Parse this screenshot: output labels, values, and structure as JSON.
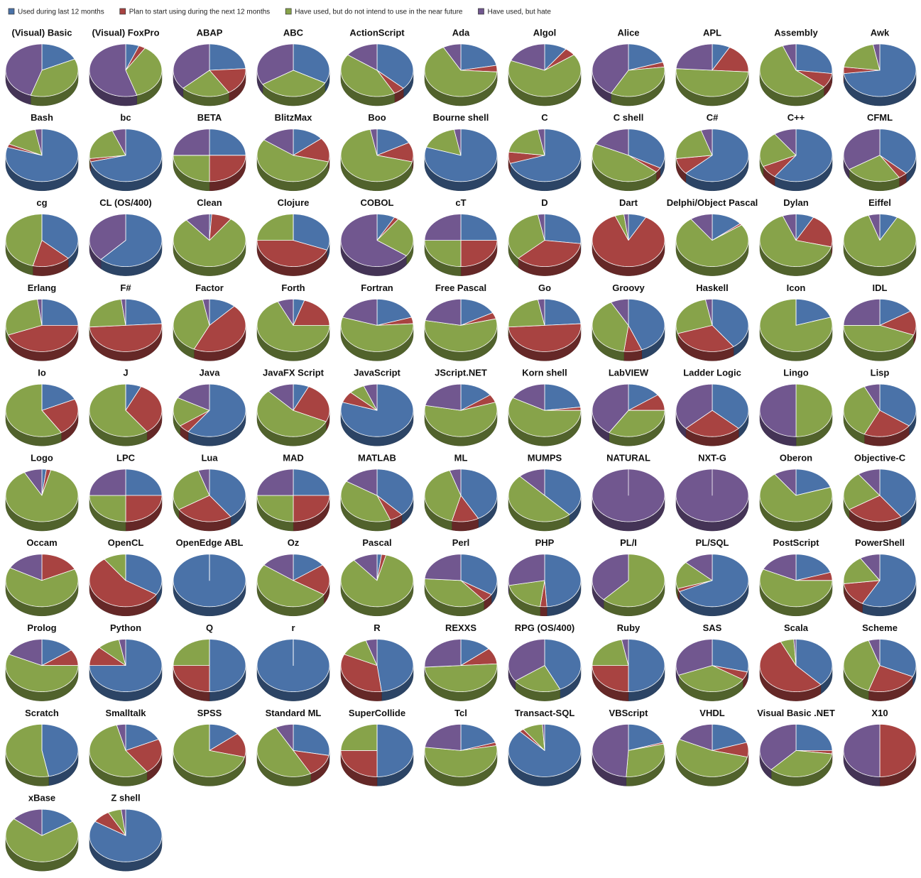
{
  "legend": [
    {
      "name": "Used during last 12 months",
      "color": "#4a72a8"
    },
    {
      "name": "Plan to start using during the next 12 months",
      "color": "#a84341"
    },
    {
      "name": "Have used, but do not intend to use in the near future",
      "color": "#87a34a"
    },
    {
      "name": "Have used, but hate",
      "color": "#71578f"
    }
  ],
  "chart_data": [
    {
      "type": "pie",
      "title": "(Visual) Basic",
      "values": [
        18,
        0,
        37,
        45
      ]
    },
    {
      "type": "pie",
      "title": "(Visual) FoxPro",
      "values": [
        6,
        3,
        36,
        55
      ]
    },
    {
      "type": "pie",
      "title": "ABAP",
      "values": [
        24,
        17,
        22,
        37
      ]
    },
    {
      "type": "pie",
      "title": "ABC",
      "values": [
        33,
        0,
        33,
        34
      ]
    },
    {
      "type": "pie",
      "title": "ActionScript",
      "values": [
        37,
        5,
        43,
        15
      ]
    },
    {
      "type": "pie",
      "title": "Ada",
      "values": [
        22,
        4,
        66,
        8
      ]
    },
    {
      "type": "pie",
      "title": "Algol",
      "values": [
        10,
        5,
        66,
        19
      ]
    },
    {
      "type": "pie",
      "title": "Alice",
      "values": [
        20,
        3,
        35,
        42
      ]
    },
    {
      "type": "pie",
      "title": "APL",
      "values": [
        8,
        18,
        50,
        24
      ]
    },
    {
      "type": "pie",
      "title": "Assembly",
      "values": [
        27,
        9,
        58,
        6
      ]
    },
    {
      "type": "pie",
      "title": "Awk",
      "values": [
        73,
        4,
        20,
        3
      ]
    },
    {
      "type": "pie",
      "title": "Bash",
      "values": [
        80,
        2,
        15,
        3
      ]
    },
    {
      "type": "pie",
      "title": "bc",
      "values": [
        71,
        2,
        21,
        6
      ]
    },
    {
      "type": "pie",
      "title": "BETA",
      "values": [
        25,
        25,
        25,
        25
      ]
    },
    {
      "type": "pie",
      "title": "BlitzMax",
      "values": [
        14,
        15,
        56,
        15
      ]
    },
    {
      "type": "pie",
      "title": "Boo",
      "values": [
        17,
        12,
        68,
        3
      ]
    },
    {
      "type": "pie",
      "title": "Bourne shell",
      "values": [
        80,
        0,
        17,
        3
      ]
    },
    {
      "type": "pie",
      "title": "C",
      "values": [
        70,
        7,
        20,
        3
      ]
    },
    {
      "type": "pie",
      "title": "C shell",
      "values": [
        33,
        3,
        46,
        18
      ]
    },
    {
      "type": "pie",
      "title": "C#",
      "values": [
        63,
        10,
        22,
        5
      ]
    },
    {
      "type": "pie",
      "title": "C++",
      "values": [
        60,
        8,
        22,
        10
      ]
    },
    {
      "type": "pie",
      "title": "CFML",
      "values": [
        37,
        4,
        25,
        34
      ]
    },
    {
      "type": "pie",
      "title": "cg",
      "values": [
        37,
        17,
        46,
        0
      ]
    },
    {
      "type": "pie",
      "title": "CL (OS/400)",
      "values": [
        62,
        0,
        0,
        38
      ]
    },
    {
      "type": "pie",
      "title": "Clean",
      "values": [
        1,
        9,
        79,
        11
      ]
    },
    {
      "type": "pie",
      "title": "Clojure",
      "values": [
        31,
        44,
        25,
        0
      ]
    },
    {
      "type": "pie",
      "title": "COBOL",
      "values": [
        8,
        2,
        25,
        65
      ]
    },
    {
      "type": "pie",
      "title": "cT",
      "values": [
        25,
        25,
        25,
        25
      ]
    },
    {
      "type": "pie",
      "title": "D",
      "values": [
        27,
        36,
        34,
        3
      ]
    },
    {
      "type": "pie",
      "title": "Dart",
      "values": [
        8,
        86,
        4,
        2
      ]
    },
    {
      "type": "pie",
      "title": "Delphi/Object Pascal",
      "values": [
        14,
        1,
        75,
        10
      ]
    },
    {
      "type": "pie",
      "title": "Dylan",
      "values": [
        8,
        21,
        65,
        6
      ]
    },
    {
      "type": "pie",
      "title": "Eiffel",
      "values": [
        8,
        0,
        87,
        5
      ]
    },
    {
      "type": "pie",
      "title": "Erlang",
      "values": [
        25,
        44,
        29,
        2
      ]
    },
    {
      "type": "pie",
      "title": "F#",
      "values": [
        24,
        50,
        24,
        2
      ]
    },
    {
      "type": "pie",
      "title": "Factor",
      "values": [
        12,
        45,
        40,
        3
      ]
    },
    {
      "type": "pie",
      "title": "Forth",
      "values": [
        5,
        20,
        68,
        7
      ]
    },
    {
      "type": "pie",
      "title": "Fortran",
      "values": [
        20,
        4,
        56,
        20
      ]
    },
    {
      "type": "pie",
      "title": "Free Pascal",
      "values": [
        17,
        4,
        57,
        22
      ]
    },
    {
      "type": "pie",
      "title": "Go",
      "values": [
        24,
        50,
        23,
        3
      ]
    },
    {
      "type": "pie",
      "title": "Groovy",
      "values": [
        44,
        8,
        40,
        8
      ]
    },
    {
      "type": "pie",
      "title": "Haskell",
      "values": [
        40,
        30,
        27,
        3
      ]
    },
    {
      "type": "pie",
      "title": "Icon",
      "values": [
        20,
        0,
        80,
        0
      ]
    },
    {
      "type": "pie",
      "title": "IDL",
      "values": [
        16,
        15,
        44,
        25
      ]
    },
    {
      "type": "pie",
      "title": "Io",
      "values": [
        18,
        23,
        59,
        0
      ]
    },
    {
      "type": "pie",
      "title": "J",
      "values": [
        7,
        33,
        60,
        0
      ]
    },
    {
      "type": "pie",
      "title": "Java",
      "values": [
        60,
        5,
        18,
        17
      ]
    },
    {
      "type": "pie",
      "title": "JavaFX Script",
      "values": [
        7,
        25,
        56,
        12
      ]
    },
    {
      "type": "pie",
      "title": "JavaScript",
      "values": [
        80,
        7,
        7,
        6
      ]
    },
    {
      "type": "pie",
      "title": "JScript.NET",
      "values": [
        15,
        5,
        58,
        22
      ]
    },
    {
      "type": "pie",
      "title": "Korn shell",
      "values": [
        23,
        2,
        58,
        17
      ]
    },
    {
      "type": "pie",
      "title": "LabVIEW",
      "values": [
        15,
        10,
        34,
        41
      ]
    },
    {
      "type": "pie",
      "title": "Ladder Logic",
      "values": [
        37,
        26,
        0,
        37
      ]
    },
    {
      "type": "pie",
      "title": "Lingo",
      "values": [
        0,
        0,
        50,
        50
      ]
    },
    {
      "type": "pie",
      "title": "Lisp",
      "values": [
        35,
        22,
        36,
        7
      ]
    },
    {
      "type": "pie",
      "title": "Logo",
      "values": [
        2,
        2,
        88,
        8
      ]
    },
    {
      "type": "pie",
      "title": "LPC",
      "values": [
        25,
        25,
        25,
        25
      ]
    },
    {
      "type": "pie",
      "title": "Lua",
      "values": [
        40,
        26,
        29,
        5
      ]
    },
    {
      "type": "pie",
      "title": "MAD",
      "values": [
        25,
        25,
        25,
        25
      ]
    },
    {
      "type": "pie",
      "title": "MATLAB",
      "values": [
        38,
        6,
        40,
        16
      ]
    },
    {
      "type": "pie",
      "title": "ML",
      "values": [
        42,
        12,
        41,
        5
      ]
    },
    {
      "type": "pie",
      "title": "MUMPS",
      "values": [
        38,
        0,
        50,
        12
      ]
    },
    {
      "type": "pie",
      "title": "NATURAL",
      "values": [
        0,
        0,
        0,
        100
      ]
    },
    {
      "type": "pie",
      "title": "NXT-G",
      "values": [
        0,
        0,
        0,
        100
      ]
    },
    {
      "type": "pie",
      "title": "Oberon",
      "values": [
        20,
        0,
        70,
        10
      ]
    },
    {
      "type": "pie",
      "title": "Objective-C",
      "values": [
        40,
        26,
        24,
        10
      ]
    },
    {
      "type": "pie",
      "title": "Occam",
      "values": [
        0,
        18,
        65,
        17
      ]
    },
    {
      "type": "pie",
      "title": "OpenCL",
      "values": [
        34,
        56,
        10,
        0
      ]
    },
    {
      "type": "pie",
      "title": "OpenEdge ABL",
      "values": [
        100,
        0,
        0,
        0
      ]
    },
    {
      "type": "pie",
      "title": "Oz",
      "values": [
        15,
        19,
        51,
        15
      ]
    },
    {
      "type": "pie",
      "title": "Pascal",
      "values": [
        2,
        2,
        85,
        11
      ]
    },
    {
      "type": "pie",
      "title": "Perl",
      "values": [
        34,
        5,
        37,
        24
      ]
    },
    {
      "type": "pie",
      "title": "PHP",
      "values": [
        49,
        3,
        20,
        28
      ]
    },
    {
      "type": "pie",
      "title": "PL/I",
      "values": [
        0,
        0,
        62,
        38
      ]
    },
    {
      "type": "pie",
      "title": "PL/SQL",
      "values": [
        68,
        2,
        17,
        13
      ]
    },
    {
      "type": "pie",
      "title": "PostScript",
      "values": [
        20,
        5,
        57,
        18
      ]
    },
    {
      "type": "pie",
      "title": "PowerShell",
      "values": [
        58,
        15,
        18,
        9
      ]
    },
    {
      "type": "pie",
      "title": "Prolog",
      "values": [
        15,
        10,
        57,
        18
      ]
    },
    {
      "type": "pie",
      "title": "Python",
      "values": [
        75,
        12,
        10,
        3
      ]
    },
    {
      "type": "pie",
      "title": "Q",
      "values": [
        50,
        25,
        25,
        0
      ]
    },
    {
      "type": "pie",
      "title": "r",
      "values": [
        100,
        0,
        0,
        0
      ]
    },
    {
      "type": "pie",
      "title": "R",
      "values": [
        48,
        34,
        13,
        5
      ]
    },
    {
      "type": "pie",
      "title": "REXXS",
      "values": [
        14,
        10,
        50,
        26
      ]
    },
    {
      "type": "pie",
      "title": "RPG (OS/400)",
      "values": [
        43,
        0,
        22,
        35
      ]
    },
    {
      "type": "pie",
      "title": "Ruby",
      "values": [
        50,
        25,
        22,
        3
      ]
    },
    {
      "type": "pie",
      "title": "SAS",
      "values": [
        29,
        5,
        35,
        31
      ]
    },
    {
      "type": "pie",
      "title": "Scala",
      "values": [
        38,
        55,
        6,
        1
      ]
    },
    {
      "type": "pie",
      "title": "Scheme",
      "values": [
        32,
        23,
        40,
        5
      ]
    },
    {
      "type": "pie",
      "title": "Scratch",
      "values": [
        47,
        0,
        53,
        0
      ]
    },
    {
      "type": "pie",
      "title": "Smalltalk",
      "values": [
        18,
        22,
        56,
        4
      ]
    },
    {
      "type": "pie",
      "title": "SPSS",
      "values": [
        14,
        15,
        71,
        0
      ]
    },
    {
      "type": "pie",
      "title": "Standard ML",
      "values": [
        28,
        14,
        50,
        8
      ]
    },
    {
      "type": "pie",
      "title": "SuperCollide",
      "values": [
        50,
        25,
        25,
        0
      ]
    },
    {
      "type": "pie",
      "title": "Tcl",
      "values": [
        20,
        2,
        55,
        23
      ]
    },
    {
      "type": "pie",
      "title": "Transact-SQL",
      "values": [
        88,
        2,
        9,
        1
      ]
    },
    {
      "type": "pie",
      "title": "VBScript",
      "values": [
        20,
        1,
        30,
        49
      ]
    },
    {
      "type": "pie",
      "title": "VHDL",
      "values": [
        20,
        9,
        53,
        18
      ]
    },
    {
      "type": "pie",
      "title": "Visual Basic .NET",
      "values": [
        25,
        2,
        35,
        38
      ]
    },
    {
      "type": "pie",
      "title": "X10",
      "values": [
        0,
        50,
        0,
        50
      ]
    },
    {
      "type": "pie",
      "title": "xBase",
      "values": [
        16,
        0,
        70,
        14
      ]
    },
    {
      "type": "pie",
      "title": "Z shell",
      "values": [
        84,
        8,
        6,
        2
      ]
    }
  ]
}
